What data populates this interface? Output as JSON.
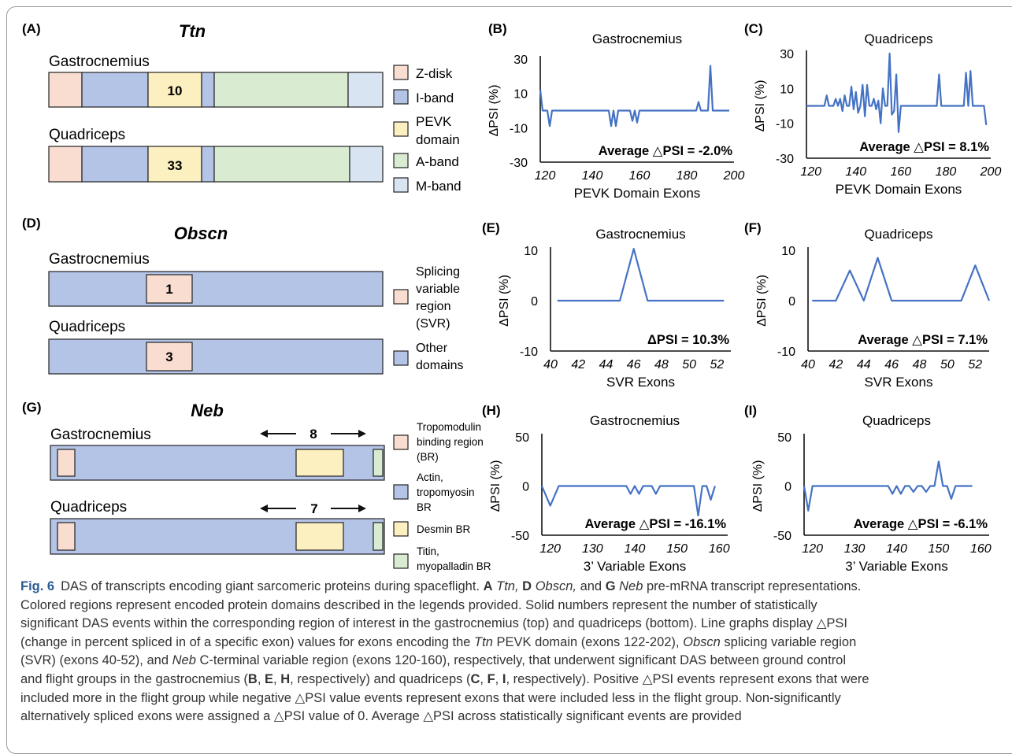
{
  "colors": {
    "z_disk": "#f8ddd0",
    "i_band": "#b4c4e6",
    "pevk": "#fdf0c0",
    "a_band": "#d9ecd2",
    "m_band": "#d9e4f3",
    "svr": "#f8ddd0",
    "other": "#b4c4e6",
    "tropomodulin": "#f8ddd0",
    "actin": "#b4c4e6",
    "desmin": "#fdf0c0",
    "titin": "#d9ecd2",
    "line": "#4472c4",
    "box_border": "#222222"
  },
  "panels": {
    "A": {
      "letter": "(A)",
      "gene": "Ttn",
      "rows": [
        {
          "tissue": "Gastrocnemius",
          "number": "10"
        },
        {
          "tissue": "Quadriceps",
          "number": "33"
        }
      ],
      "legend": [
        {
          "label": "Z-disk"
        },
        {
          "label": "I-band"
        },
        {
          "label": "PEVK",
          "label2": "domain"
        },
        {
          "label": "A-band"
        },
        {
          "label": "M-band"
        }
      ]
    },
    "D": {
      "letter": "(D)",
      "gene": "Obscn",
      "rows": [
        {
          "tissue": "Gastrocnemius",
          "number": "1"
        },
        {
          "tissue": "Quadriceps",
          "number": "3"
        }
      ],
      "legend": [
        {
          "lines": [
            "Splicing",
            "variable",
            "region",
            "(SVR)"
          ]
        },
        {
          "lines": [
            "Other",
            "domains"
          ]
        }
      ]
    },
    "G": {
      "letter": "(G)",
      "gene": "Neb",
      "rows": [
        {
          "tissue": "Gastrocnemius",
          "number": "8"
        },
        {
          "tissue": "Quadriceps",
          "number": "7"
        }
      ],
      "legend": [
        {
          "lines": [
            "Tropomodulin",
            "binding region",
            "(BR)"
          ]
        },
        {
          "lines": [
            "Actin,",
            "tropomyosin",
            "BR"
          ]
        },
        {
          "lines": [
            "Desmin BR"
          ]
        },
        {
          "lines": [
            "Titin,",
            "myopalladin BR"
          ]
        }
      ]
    }
  },
  "caption": {
    "fig_label": "Fig. 6",
    "line1": "DAS of transcripts encoding giant sarcomeric proteins during spaceflight.",
    "A": "A",
    "ttn": "Ttn,",
    "D": "D",
    "obscn": "Obscn,",
    "and": "and",
    "G": "G",
    "neb": "Neb",
    "line1_end": "pre-mRNA transcript representations.",
    "line2": "Colored regions represent encoded protein domains described in the legends provided. Solid numbers represent the number of statistically",
    "line3": "significant DAS events within the corresponding region of interest in the gastrocnemius (top) and quadriceps (bottom). Line graphs display △PSI",
    "line4a": "(change in percent spliced in of a specific exon) values for exons encoding the",
    "ttn2": "Ttn",
    "line4b": "PEVK domain (exons 122-202),",
    "obscn2": "Obscn",
    "line4c": "splicing variable region",
    "line5a": "(SVR) (exons 40-52), and",
    "neb2": "Neb",
    "line5b": "C-terminal variable region (exons 120-160), respectively, that underwent significant DAS between ground control",
    "line6a": "and flight groups in the gastrocnemius (",
    "B": "B",
    "E": "E",
    "H": "H",
    "line6b": "respectively) and quadriceps (",
    "C": "C",
    "F": "F",
    "I": "I",
    "line6c": "respectively). Positive △PSI events represent exons that were",
    "line7": "included more in the flight group while negative △PSI value events represent exons that were included less in the flight group. Non-significantly",
    "line8": "alternatively spliced exons were assigned a △PSI value of 0. Average △PSI across statistically significant events are provided",
    "comma": ","
  },
  "chart_data": [
    {
      "id": "B",
      "letter": "(B)",
      "type": "line",
      "title": "Gastrocnemius",
      "xlabel": "PEVK Domain Exons",
      "ylabel": "ΔPSI (%)",
      "xlim": [
        118,
        200
      ],
      "ylim": [
        -30,
        30
      ],
      "xticks": [
        "120",
        "140",
        "160",
        "180",
        "200"
      ],
      "yticks": [
        "30",
        "10",
        "-10",
        "-30"
      ],
      "annotation": "Average △PSI = -2.0%",
      "x": [
        118,
        119,
        120,
        121,
        122,
        123,
        124,
        125,
        126,
        127,
        128,
        129,
        130,
        131,
        132,
        133,
        134,
        135,
        136,
        137,
        138,
        139,
        140,
        141,
        142,
        143,
        144,
        145,
        146,
        147,
        148,
        149,
        150,
        151,
        152,
        153,
        154,
        155,
        156,
        157,
        158,
        159,
        160,
        161,
        162,
        163,
        164,
        165,
        166,
        167,
        168,
        169,
        170,
        171,
        172,
        173,
        174,
        175,
        176,
        177,
        178,
        179,
        180,
        181,
        182,
        183,
        184,
        185,
        186,
        187,
        188,
        189,
        190,
        191,
        192,
        193,
        194,
        195,
        196,
        197,
        198
      ],
      "y": [
        12,
        0,
        0,
        0,
        -9,
        0,
        0,
        0,
        0,
        0,
        0,
        0,
        0,
        0,
        0,
        0,
        0,
        0,
        0,
        0,
        0,
        0,
        0,
        0,
        0,
        0,
        0,
        0,
        0,
        0,
        -9,
        0,
        -9,
        0,
        0,
        0,
        0,
        0,
        0,
        -6,
        0,
        -7,
        0,
        0,
        0,
        0,
        0,
        0,
        0,
        0,
        0,
        0,
        0,
        0,
        0,
        0,
        0,
        0,
        0,
        0,
        0,
        0,
        0,
        0,
        0,
        0,
        0,
        5,
        0,
        0,
        0,
        0,
        26,
        0,
        0,
        0,
        0,
        0,
        0,
        0,
        0
      ]
    },
    {
      "id": "C",
      "letter": "(C)",
      "type": "line",
      "title": "Quadriceps",
      "xlabel": "PEVK Domain Exons",
      "ylabel": "ΔPSI (%)",
      "xlim": [
        118,
        200
      ],
      "ylim": [
        -30,
        30
      ],
      "xticks": [
        "120",
        "140",
        "160",
        "180",
        "200"
      ],
      "yticks": [
        "30",
        "10",
        "-10",
        "-30"
      ],
      "annotation": "Average △PSI = 8.1%",
      "x": [
        118,
        120,
        122,
        124,
        126,
        127,
        128,
        129,
        130,
        131,
        132,
        133,
        134,
        135,
        136,
        137,
        138,
        139,
        140,
        141,
        142,
        143,
        144,
        145,
        146,
        147,
        148,
        149,
        150,
        151,
        152,
        153,
        154,
        155,
        156,
        157,
        158,
        159,
        160,
        162,
        164,
        166,
        168,
        170,
        172,
        174,
        176,
        177,
        178,
        180,
        182,
        184,
        186,
        188,
        189,
        190,
        191,
        192,
        194,
        196,
        197,
        198
      ],
      "y": [
        0,
        0,
        0,
        0,
        0,
        6,
        0,
        0,
        0,
        4,
        0,
        4,
        -3,
        6,
        0,
        0,
        11,
        -2,
        8,
        -4,
        0,
        12,
        -6,
        12,
        0,
        0,
        4,
        -2,
        3,
        -10,
        10,
        0,
        0,
        30,
        -5,
        -3,
        18,
        -15,
        0,
        0,
        0,
        0,
        0,
        0,
        0,
        0,
        0,
        18,
        0,
        0,
        0,
        0,
        0,
        0,
        19,
        0,
        20,
        0,
        0,
        0,
        0,
        -11
      ]
    },
    {
      "id": "E",
      "letter": "(E)",
      "type": "line",
      "title": "Gastrocnemius",
      "xlabel": "SVR Exons",
      "ylabel": "ΔPSI (%)",
      "xlim": [
        40,
        53
      ],
      "ylim": [
        -10,
        10
      ],
      "xticks": [
        "40",
        "42",
        "44",
        "46",
        "48",
        "50",
        "52"
      ],
      "yticks": [
        "10",
        "0",
        "-10"
      ],
      "annotation": "ΔPSI = 10.3%",
      "x": [
        40.5,
        41,
        42,
        43,
        44,
        45,
        46,
        47,
        48,
        49,
        50,
        51,
        52,
        52.5
      ],
      "y": [
        0,
        0,
        0,
        0,
        0,
        0,
        10.3,
        0,
        0,
        0,
        0,
        0,
        0,
        0
      ]
    },
    {
      "id": "F",
      "letter": "(F)",
      "type": "line",
      "title": "Quadriceps",
      "xlabel": "SVR Exons",
      "ylabel": "ΔPSI (%)",
      "xlim": [
        40,
        53
      ],
      "ylim": [
        -10,
        10
      ],
      "xticks": [
        "40",
        "42",
        "44",
        "46",
        "48",
        "50",
        "52"
      ],
      "yticks": [
        "10",
        "0",
        "-10"
      ],
      "annotation": "Average △PSI = 7.1%",
      "x": [
        40.3,
        41,
        42,
        43,
        44,
        45,
        46,
        47,
        48,
        49,
        50,
        51,
        52,
        53
      ],
      "y": [
        0,
        0,
        0,
        6,
        0,
        8.5,
        0,
        0,
        0,
        0,
        0,
        0,
        7,
        0
      ]
    },
    {
      "id": "H",
      "letter": "(H)",
      "type": "line",
      "title": "Gastrocnemius",
      "xlabel": "3’ Variable Exons",
      "ylabel": "ΔPSI (%)",
      "xlim": [
        118,
        162
      ],
      "ylim": [
        -50,
        50
      ],
      "xticks": [
        "120",
        "130",
        "140",
        "150",
        "160"
      ],
      "yticks": [
        "50",
        "0",
        "-50"
      ],
      "annotation": "Average △PSI = -16.1%",
      "x": [
        118,
        120,
        122,
        124,
        126,
        128,
        130,
        132,
        134,
        136,
        138,
        139,
        140,
        141,
        142,
        143,
        144,
        145,
        146,
        147,
        148,
        150,
        152,
        154,
        155,
        156,
        157,
        158,
        159
      ],
      "y": [
        0,
        -20,
        0,
        0,
        0,
        0,
        0,
        0,
        0,
        0,
        0,
        -8,
        0,
        -8,
        0,
        0,
        0,
        -8,
        0,
        0,
        0,
        0,
        0,
        0,
        -30,
        0,
        0,
        -14,
        0
      ]
    },
    {
      "id": "I",
      "letter": "(I)",
      "type": "line",
      "title": "Quadriceps",
      "xlabel": "3’ Variable Exons",
      "ylabel": "ΔPSI (%)",
      "xlim": [
        118,
        162
      ],
      "ylim": [
        -50,
        50
      ],
      "xticks": [
        "120",
        "130",
        "140",
        "150",
        "160"
      ],
      "yticks": [
        "50",
        "0",
        "-50"
      ],
      "annotation": "Average △PSI = -6.1%",
      "x": [
        118,
        119,
        120,
        122,
        124,
        126,
        128,
        130,
        132,
        134,
        136,
        138,
        139,
        140,
        141,
        142,
        143,
        144,
        145,
        146,
        147,
        148,
        149,
        150,
        151,
        152,
        153,
        154,
        155,
        156,
        157,
        158
      ],
      "y": [
        0,
        -25,
        0,
        0,
        0,
        0,
        0,
        0,
        0,
        0,
        0,
        0,
        -8,
        0,
        -8,
        0,
        0,
        -6,
        0,
        0,
        -6,
        0,
        0,
        25,
        0,
        0,
        -13,
        0,
        0,
        0,
        0,
        0
      ]
    }
  ]
}
